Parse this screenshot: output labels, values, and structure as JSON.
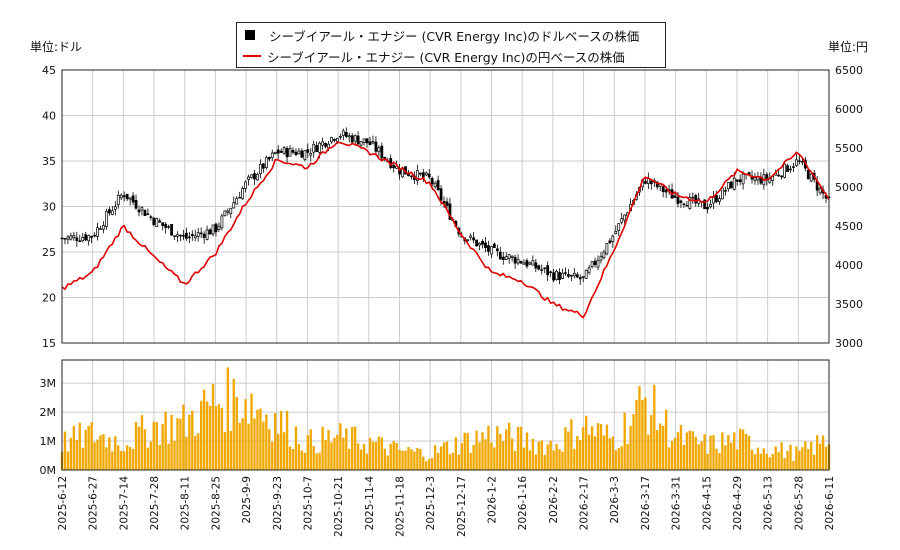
{
  "legend": {
    "usd_label": "シーブイアール・エナジー (CVR Energy Inc)のドルベースの株価",
    "jpy_label": "シーブイアール・エナジー (CVR Energy Inc)の円ベースの株価"
  },
  "units": {
    "left": "単位:ドル",
    "right": "単位:円"
  },
  "colors": {
    "candle": "#000000",
    "jpy_line": "#e00000",
    "volume": "#f0a800",
    "grid": "#cccccc"
  },
  "chart_data": [
    {
      "type": "line",
      "description_series": [
        "USD price (candlestick)",
        "JPY price (line)"
      ],
      "x": [
        "2025-6-12",
        "2025-6-27",
        "2025-7-14",
        "2025-7-28",
        "2025-8-11",
        "2025-8-25",
        "2025-9-9",
        "2025-9-23",
        "2025-10-7",
        "2025-10-21",
        "2025-11-4",
        "2025-11-18",
        "2025-12-3",
        "2025-12-17",
        "2026-1-2",
        "2026-1-16",
        "2026-2-2",
        "2026-2-17",
        "2026-3-3",
        "2026-3-17",
        "2026-3-31",
        "2026-4-15",
        "2026-4-29",
        "2026-5-13",
        "2026-5-28",
        "2026-6-11"
      ],
      "usd_close": [
        26.5,
        26.8,
        31.5,
        28.5,
        26.5,
        27.5,
        32.5,
        36,
        36,
        38,
        37,
        34,
        33,
        27,
        25,
        24,
        22.5,
        22,
        27,
        33,
        31,
        30,
        33,
        33,
        35,
        30.5
      ],
      "jpy_close": [
        3700,
        3900,
        4500,
        4100,
        3750,
        4150,
        4800,
        5350,
        5250,
        5600,
        5450,
        5250,
        5050,
        4400,
        3900,
        3800,
        3500,
        3350,
        4200,
        5150,
        4900,
        4800,
        5200,
        5100,
        5450,
        4850
      ],
      "tick_labels": [
        "2025-6-12",
        "2025-6-27",
        "2025-7-14",
        "2025-7-28",
        "2025-8-11",
        "2025-8-25",
        "2025-9-9",
        "2025-9-23",
        "2025-10-7",
        "2025-10-21",
        "2025-11-4",
        "2025-11-18",
        "2025-12-3",
        "2025-12-17",
        "2026-1-2",
        "2026-1-16",
        "2026-2-2",
        "2026-2-17",
        "2026-3-3",
        "2026-3-17",
        "2026-3-31",
        "2026-4-15",
        "2026-4-29",
        "2026-5-13",
        "2026-5-28",
        "2026-6-11"
      ],
      "ylim_left": [
        15,
        45
      ],
      "ylim_right": [
        3000,
        6500
      ],
      "yticks_left": [
        15,
        20,
        25,
        30,
        35,
        40,
        45
      ],
      "yticks_right": [
        3000,
        3500,
        4000,
        4500,
        5000,
        5500,
        6000,
        6500
      ],
      "grid": true,
      "legend_position": "top-center"
    },
    {
      "type": "bar",
      "x": [
        "2025-6-12",
        "2025-6-27",
        "2025-7-14",
        "2025-7-28",
        "2025-8-11",
        "2025-8-25",
        "2025-9-9",
        "2025-9-23",
        "2025-10-7",
        "2025-10-21",
        "2025-11-4",
        "2025-11-18",
        "2025-12-3",
        "2025-12-17",
        "2026-1-2",
        "2026-1-16",
        "2026-2-2",
        "2026-2-17",
        "2026-3-3",
        "2026-3-17",
        "2026-3-31",
        "2026-4-15",
        "2026-4-29",
        "2026-5-13",
        "2026-5-28",
        "2026-6-11"
      ],
      "volume_millions": [
        1.0,
        1.3,
        1.0,
        1.6,
        1.7,
        2.5,
        2.6,
        1.8,
        1.0,
        1.2,
        1.0,
        0.7,
        0.6,
        1.0,
        1.3,
        1.1,
        0.9,
        1.6,
        1.1,
        2.5,
        1.2,
        0.9,
        1.1,
        0.8,
        0.6,
        1.1
      ],
      "ylim": [
        0,
        3.8
      ],
      "yticks": [
        "0M",
        "1M",
        "2M",
        "3M"
      ],
      "grid": true
    }
  ]
}
